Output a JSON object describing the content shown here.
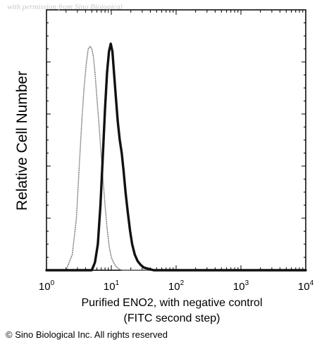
{
  "watermark": "with permission from Sino Biological",
  "copyright": "© Sino Biological Inc. All rights reserved",
  "chart_data": {
    "type": "line",
    "title": "",
    "xlabel_lines": [
      "Purified ENO2, with negative control",
      "(FITC second step)"
    ],
    "ylabel": "Relative Cell Number",
    "x_scale": "log",
    "xlim": [
      1,
      10000
    ],
    "ylim": [
      0,
      100
    ],
    "x_ticks": [
      {
        "value": 1,
        "base": "10",
        "exp": "0"
      },
      {
        "value": 10,
        "base": "10",
        "exp": "1"
      },
      {
        "value": 100,
        "base": "10",
        "exp": "2"
      },
      {
        "value": 1000,
        "base": "10",
        "exp": "3"
      },
      {
        "value": 10000,
        "base": "10",
        "exp": "4"
      }
    ],
    "grid": false,
    "series": [
      {
        "style": "dotted",
        "color": "#8c8c8c",
        "x": [
          1,
          2.0,
          2.5,
          2.9,
          3.2,
          3.5,
          3.8,
          4.1,
          4.4,
          4.7,
          5.0,
          5.3,
          5.6,
          6.0,
          6.5,
          7.0,
          7.5,
          8.0,
          8.6,
          9.3,
          10.0,
          10.8,
          11.8,
          13.0,
          15.0,
          10000
        ],
        "values": [
          0,
          0,
          6,
          20,
          40,
          57,
          70,
          79,
          85,
          86,
          85,
          82,
          76,
          66,
          55,
          44,
          34,
          25,
          16,
          9,
          5,
          3,
          1.5,
          0.5,
          0,
          0
        ]
      },
      {
        "style": "solid",
        "color": "#111111",
        "x": [
          1,
          5.0,
          5.6,
          6.2,
          6.8,
          7.4,
          8.0,
          8.6,
          9.2,
          9.8,
          10.4,
          11.0,
          11.8,
          12.6,
          13.5,
          14.5,
          15.5,
          16.6,
          18.0,
          19.5,
          21.0,
          23.0,
          25.5,
          28.5,
          32.0,
          38.0,
          45.0,
          10000
        ],
        "values": [
          0,
          0,
          3,
          10,
          25,
          44,
          62,
          76,
          84,
          87,
          84,
          76,
          66,
          57,
          50,
          45,
          38,
          30,
          22,
          15,
          10,
          6,
          3.5,
          2,
          1,
          0.5,
          0,
          0
        ]
      }
    ]
  }
}
